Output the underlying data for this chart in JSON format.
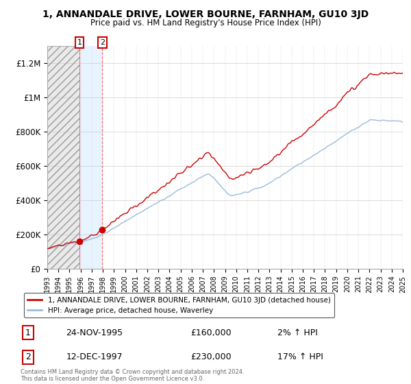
{
  "title": "1, ANNANDALE DRIVE, LOWER BOURNE, FARNHAM, GU10 3JD",
  "subtitle": "Price paid vs. HM Land Registry's House Price Index (HPI)",
  "legend_line1": "1, ANNANDALE DRIVE, LOWER BOURNE, FARNHAM, GU10 3JD (detached house)",
  "legend_line2": "HPI: Average price, detached house, Waverley",
  "footer": "Contains HM Land Registry data © Crown copyright and database right 2024.\nThis data is licensed under the Open Government Licence v3.0.",
  "transaction1_date": "24-NOV-1995",
  "transaction1_price": "£160,000",
  "transaction1_hpi": "2% ↑ HPI",
  "transaction1_year": 1995.9,
  "transaction2_date": "12-DEC-1997",
  "transaction2_price": "£230,000",
  "transaction2_hpi": "17% ↑ HPI",
  "transaction2_year": 1997.95,
  "property_color": "#cc0000",
  "hpi_color": "#99bbdd",
  "hatch_color": "#bbbbbb",
  "shade_color": "#ddeeff",
  "ylim": [
    0,
    1300000
  ],
  "yticks": [
    0,
    200000,
    400000,
    600000,
    800000,
    1000000,
    1200000
  ],
  "ytick_labels": [
    "£0",
    "£200K",
    "£400K",
    "£600K",
    "£800K",
    "£1M",
    "£1.2M"
  ],
  "x_start_year": 1993,
  "x_end_year": 2025
}
